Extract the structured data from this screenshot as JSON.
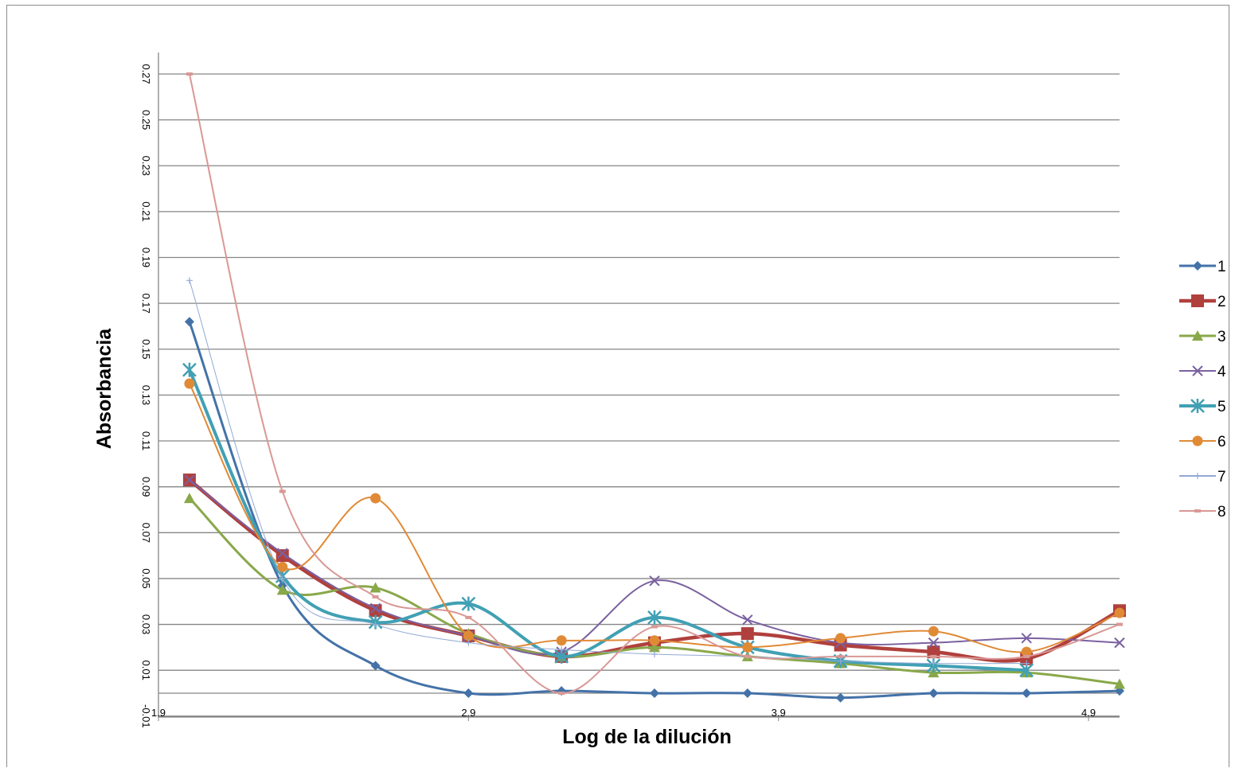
{
  "chart_data": {
    "type": "line",
    "title": "",
    "xlabel": "Log de la dilución",
    "ylabel": "Absorbancia",
    "x": [
      2.0,
      2.3,
      2.6,
      2.9,
      3.2,
      3.5,
      3.8,
      4.1,
      4.4,
      4.7,
      5.0
    ],
    "xlim": [
      1.9,
      5.0
    ],
    "ylim": [
      -0.01,
      0.28
    ],
    "x_ticks": [
      "1.9",
      "2.9",
      "3.9",
      "4.9"
    ],
    "y_ticks": [
      "-0.01",
      "0.01",
      "0.03",
      "0.05",
      "0.07",
      "0.09",
      "0.11",
      "0.13",
      "0.15",
      "0.17",
      "0.19",
      "0.21",
      "0.23",
      "0.25",
      "0.27"
    ],
    "grid": true,
    "legend_position": "right",
    "series": [
      {
        "name": "1",
        "color": "#4472a8",
        "marker": "diamond",
        "values": [
          0.162,
          0.047,
          0.012,
          0.0,
          0.001,
          0.0,
          0.0,
          -0.002,
          0.0,
          0.0,
          0.001
        ]
      },
      {
        "name": "2",
        "color": "#b0403d",
        "marker": "square",
        "values": [
          0.093,
          0.06,
          0.036,
          0.025,
          0.016,
          0.022,
          0.026,
          0.021,
          0.018,
          0.015,
          0.036
        ]
      },
      {
        "name": "3",
        "color": "#89a84a",
        "marker": "triangle",
        "values": [
          0.085,
          0.045,
          0.046,
          0.026,
          0.016,
          0.02,
          0.016,
          0.013,
          0.009,
          0.009,
          0.004
        ]
      },
      {
        "name": "4",
        "color": "#7b61a0",
        "marker": "x",
        "values": [
          0.093,
          0.061,
          0.037,
          0.025,
          0.018,
          0.049,
          0.032,
          0.022,
          0.022,
          0.024,
          0.022
        ]
      },
      {
        "name": "5",
        "color": "#41a0b4",
        "marker": "star",
        "values": [
          0.141,
          0.051,
          0.031,
          0.039,
          0.016,
          0.033,
          0.02,
          0.014,
          0.012,
          0.01,
          null
        ]
      },
      {
        "name": "6",
        "color": "#e08a36",
        "marker": "circle",
        "values": [
          0.135,
          0.055,
          0.085,
          0.025,
          0.023,
          0.023,
          0.02,
          0.024,
          0.027,
          0.018,
          0.035
        ]
      },
      {
        "name": "7",
        "color": "#92a9d4",
        "marker": "plus",
        "values": [
          0.18,
          0.05,
          0.03,
          0.022,
          0.019,
          0.017,
          0.016,
          0.014,
          0.013,
          0.013,
          null
        ]
      },
      {
        "name": "8",
        "color": "#d99895",
        "marker": "dash",
        "values": [
          0.27,
          0.088,
          0.042,
          0.033,
          0.0,
          0.029,
          0.016,
          0.016,
          0.016,
          0.016,
          0.03
        ]
      }
    ]
  }
}
